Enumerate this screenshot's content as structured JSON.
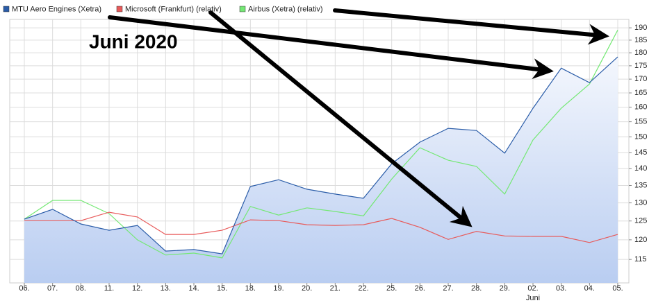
{
  "chart_data": {
    "type": "line",
    "annotation": "Juni 2020",
    "categories": [
      "06.",
      "07.",
      "08.",
      "11.",
      "12.",
      "13.",
      "14.",
      "15.",
      "18.",
      "19.",
      "20.",
      "21.",
      "22.",
      "25.",
      "26.",
      "27.",
      "28.",
      "29.",
      "02.",
      "03.",
      "04.",
      "05."
    ],
    "x_group_label": {
      "label": "Juni",
      "from_category": 18
    },
    "series": [
      {
        "name": "MTU Aero Engines (Xetra)",
        "color": "#2a5ca8",
        "area": true,
        "values": [
          125.5,
          128.2,
          124.2,
          122.5,
          123.8,
          117.1,
          117.5,
          116.4,
          134.7,
          136.7,
          133.9,
          132.5,
          131.3,
          141.5,
          148.3,
          152.8,
          152.1,
          144.8,
          159.6,
          174.1,
          168.7,
          178.4
        ]
      },
      {
        "name": "Microsoft (Frankfurt) (relativ)",
        "color": "#e85a5a",
        "values": [
          125.1,
          125.1,
          125.1,
          127.4,
          126.1,
          121.4,
          121.4,
          122.5,
          125.3,
          125.1,
          124.0,
          123.8,
          124.0,
          125.7,
          123.3,
          120.1,
          122.2,
          121.0,
          120.9,
          120.9,
          119.3,
          121.4
        ]
      },
      {
        "name": "Airbus (Xetra) (relativ)",
        "color": "#74e874",
        "values": [
          125.5,
          130.7,
          130.7,
          127.0,
          120.0,
          116.1,
          116.6,
          115.4,
          129.0,
          126.6,
          128.6,
          127.6,
          126.4,
          136.9,
          146.5,
          142.6,
          140.7,
          132.5,
          149.0,
          159.6,
          168.2,
          189.1
        ]
      }
    ],
    "ylim": [
      109.3,
      193.5
    ],
    "yticks": [
      115,
      120,
      125,
      130,
      135,
      140,
      145,
      150,
      155,
      160,
      165,
      170,
      175,
      180,
      185,
      190
    ],
    "log_scale": true,
    "grid": true,
    "legend": "top-left"
  }
}
